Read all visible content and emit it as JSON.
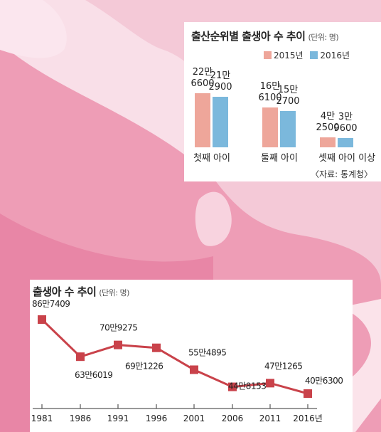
{
  "chart_data": [
    {
      "type": "bar",
      "title": "출산순위별 출생아 수 추이",
      "unit": "(단위: 명)",
      "categories": [
        "첫째 아이",
        "둘째 아이",
        "셋째 아이 이상"
      ],
      "series": [
        {
          "name": "2015년",
          "color": "#eea69a",
          "values": [
            226600,
            166100,
            42500
          ],
          "labels": [
            "22만\n6600",
            "16만\n6100",
            "4만\n2500"
          ]
        },
        {
          "name": "2016년",
          "color": "#7bb8dc",
          "values": [
            212900,
            152700,
            39600
          ],
          "labels": [
            "21만\n2900",
            "15만\n2700",
            "3만\n9600"
          ]
        }
      ],
      "source": "〈자료: 통계청〉"
    },
    {
      "type": "line",
      "title": "출생아 수 추이",
      "unit": "(단위: 명)",
      "x": [
        "1981",
        "1986",
        "1991",
        "1996",
        "2001",
        "2006",
        "2011",
        "2016년"
      ],
      "values": [
        867409,
        636019,
        709275,
        691226,
        554895,
        448153,
        471265,
        406300
      ],
      "labels": [
        "86만7409",
        "63만6019",
        "70만9275",
        "69만1226",
        "55만4895",
        "44만8153",
        "47만1265",
        "40만6300"
      ],
      "color": "#c9424a"
    }
  ]
}
